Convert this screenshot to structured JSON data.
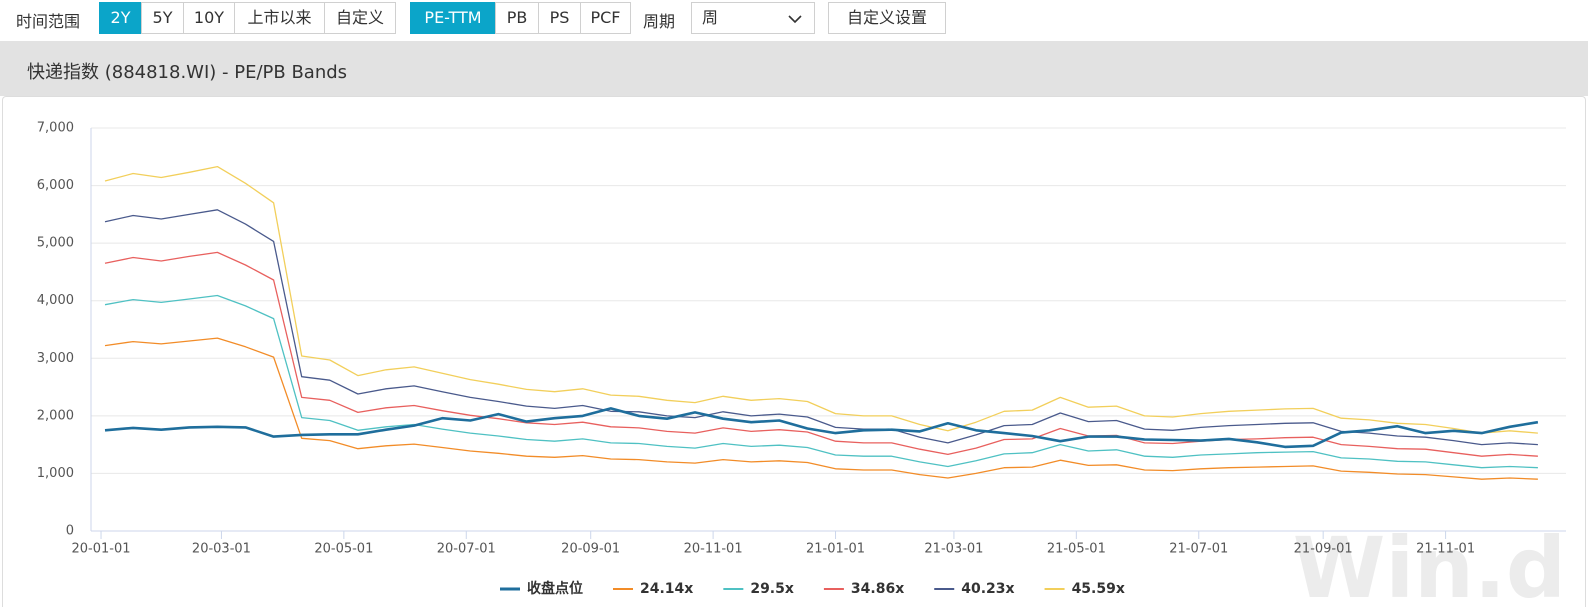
{
  "toolbar": {
    "range_label": "时间范围",
    "ranges": [
      {
        "label": "2Y",
        "selected": true
      },
      {
        "label": "5Y",
        "selected": false
      },
      {
        "label": "10Y",
        "selected": false
      },
      {
        "label": "上市以来",
        "selected": false
      },
      {
        "label": "自定义",
        "selected": false
      }
    ],
    "metrics": [
      {
        "label": "PE-TTM",
        "selected": true
      },
      {
        "label": "PB",
        "selected": false
      },
      {
        "label": "PS",
        "selected": false
      },
      {
        "label": "PCF",
        "selected": false
      }
    ],
    "period_label": "周期",
    "period_value": "周",
    "settings_button": "自定义设置"
  },
  "panel_title": "快递指数 (884818.WI) - PE/PB Bands",
  "watermark": "Win.d",
  "chart_data": {
    "type": "line",
    "x": [
      "20-01-03",
      "20-01-17",
      "20-01-31",
      "20-02-14",
      "20-02-28",
      "20-03-13",
      "20-03-27",
      "20-04-10",
      "20-04-24",
      "20-05-08",
      "20-05-22",
      "20-06-05",
      "20-06-19",
      "20-07-03",
      "20-07-17",
      "20-07-31",
      "20-08-14",
      "20-08-28",
      "20-09-11",
      "20-09-25",
      "20-10-09",
      "20-10-23",
      "20-11-06",
      "20-11-20",
      "20-12-04",
      "20-12-18",
      "21-01-01",
      "21-01-15",
      "21-01-29",
      "21-02-12",
      "21-02-26",
      "21-03-12",
      "21-03-26",
      "21-04-09",
      "21-04-23",
      "21-05-07",
      "21-05-21",
      "21-06-04",
      "21-06-18",
      "21-07-02",
      "21-07-16",
      "21-07-30",
      "21-08-13",
      "21-08-27",
      "21-09-10",
      "21-09-24",
      "21-10-08",
      "21-10-22",
      "21-11-05",
      "21-11-19",
      "21-12-03",
      "21-12-17"
    ],
    "series": [
      {
        "name": "收盘点位",
        "color": "#1f6e9c",
        "values": [
          1750,
          1790,
          1760,
          1800,
          1810,
          1800,
          1640,
          1670,
          1680,
          1680,
          1760,
          1830,
          1960,
          1920,
          2030,
          1900,
          1960,
          2000,
          2130,
          2000,
          1950,
          2060,
          1950,
          1890,
          1920,
          1780,
          1700,
          1750,
          1760,
          1730,
          1870,
          1750,
          1700,
          1650,
          1560,
          1640,
          1640,
          1590,
          1580,
          1570,
          1600,
          1540,
          1460,
          1480,
          1710,
          1750,
          1820,
          1700,
          1740,
          1700,
          1810,
          1890
        ]
      },
      {
        "name": "24.14x",
        "color": "#f28c28",
        "values": [
          3220,
          3290,
          3250,
          3300,
          3350,
          3200,
          3020,
          1610,
          1570,
          1430,
          1480,
          1510,
          1450,
          1390,
          1350,
          1300,
          1280,
          1310,
          1250,
          1240,
          1200,
          1180,
          1240,
          1200,
          1220,
          1190,
          1080,
          1060,
          1060,
          980,
          920,
          1000,
          1100,
          1110,
          1230,
          1140,
          1150,
          1060,
          1050,
          1080,
          1100,
          1110,
          1120,
          1130,
          1040,
          1020,
          990,
          980,
          940,
          900,
          920,
          900
        ]
      },
      {
        "name": "29.5x",
        "color": "#4fc1c3",
        "values": [
          3930,
          4020,
          3970,
          4030,
          4090,
          3910,
          3690,
          1970,
          1920,
          1750,
          1810,
          1850,
          1770,
          1700,
          1650,
          1590,
          1560,
          1600,
          1530,
          1520,
          1470,
          1440,
          1520,
          1470,
          1490,
          1450,
          1320,
          1300,
          1300,
          1200,
          1120,
          1220,
          1340,
          1360,
          1500,
          1390,
          1410,
          1300,
          1280,
          1320,
          1340,
          1360,
          1370,
          1380,
          1270,
          1250,
          1210,
          1200,
          1150,
          1100,
          1120,
          1100
        ]
      },
      {
        "name": "34.86x",
        "color": "#e8605e",
        "values": [
          4650,
          4750,
          4690,
          4770,
          4840,
          4620,
          4360,
          2320,
          2270,
          2060,
          2140,
          2180,
          2090,
          2010,
          1950,
          1880,
          1850,
          1890,
          1810,
          1790,
          1730,
          1700,
          1790,
          1730,
          1760,
          1720,
          1560,
          1530,
          1530,
          1420,
          1330,
          1440,
          1590,
          1600,
          1780,
          1650,
          1660,
          1530,
          1520,
          1560,
          1590,
          1600,
          1620,
          1630,
          1500,
          1470,
          1430,
          1420,
          1360,
          1300,
          1330,
          1300
        ]
      },
      {
        "name": "40.23x",
        "color": "#4a5a8c",
        "values": [
          5370,
          5480,
          5420,
          5500,
          5580,
          5330,
          5030,
          2680,
          2620,
          2380,
          2470,
          2520,
          2420,
          2320,
          2250,
          2170,
          2130,
          2180,
          2080,
          2070,
          2000,
          1970,
          2070,
          2000,
          2030,
          1980,
          1800,
          1770,
          1770,
          1630,
          1530,
          1670,
          1830,
          1850,
          2050,
          1900,
          1920,
          1770,
          1750,
          1800,
          1830,
          1850,
          1870,
          1880,
          1730,
          1700,
          1650,
          1630,
          1570,
          1500,
          1530,
          1500
        ]
      },
      {
        "name": "45.59x",
        "color": "#f2cf5b",
        "values": [
          6080,
          6210,
          6140,
          6230,
          6330,
          6040,
          5700,
          3040,
          2970,
          2700,
          2800,
          2850,
          2740,
          2630,
          2550,
          2460,
          2420,
          2470,
          2360,
          2340,
          2270,
          2230,
          2340,
          2270,
          2300,
          2250,
          2040,
          2000,
          2000,
          1850,
          1740,
          1890,
          2080,
          2100,
          2320,
          2150,
          2170,
          2000,
          1980,
          2040,
          2080,
          2100,
          2120,
          2130,
          1960,
          1930,
          1870,
          1850,
          1780,
          1700,
          1740,
          1700
        ]
      }
    ],
    "xlim": [
      "19-12-27",
      "21-12-31"
    ],
    "xticks": [
      "20-01-01",
      "20-03-01",
      "20-05-01",
      "20-07-01",
      "20-09-01",
      "20-11-01",
      "21-01-01",
      "21-03-01",
      "21-05-01",
      "21-07-01",
      "21-09-01",
      "21-11-01"
    ],
    "ylim": [
      0,
      7000
    ],
    "yticks": [
      0,
      {
        "value": 1000,
        "label": "1,000"
      },
      {
        "value": 2000,
        "label": "2,000"
      },
      {
        "value": 3000,
        "label": "3,000"
      },
      {
        "value": 4000,
        "label": "4,000"
      },
      {
        "value": 5000,
        "label": "5,000"
      },
      {
        "value": 6000,
        "label": "6,000"
      },
      {
        "value": 7000,
        "label": "7,000"
      }
    ],
    "grid": true,
    "legend": "bottom"
  }
}
